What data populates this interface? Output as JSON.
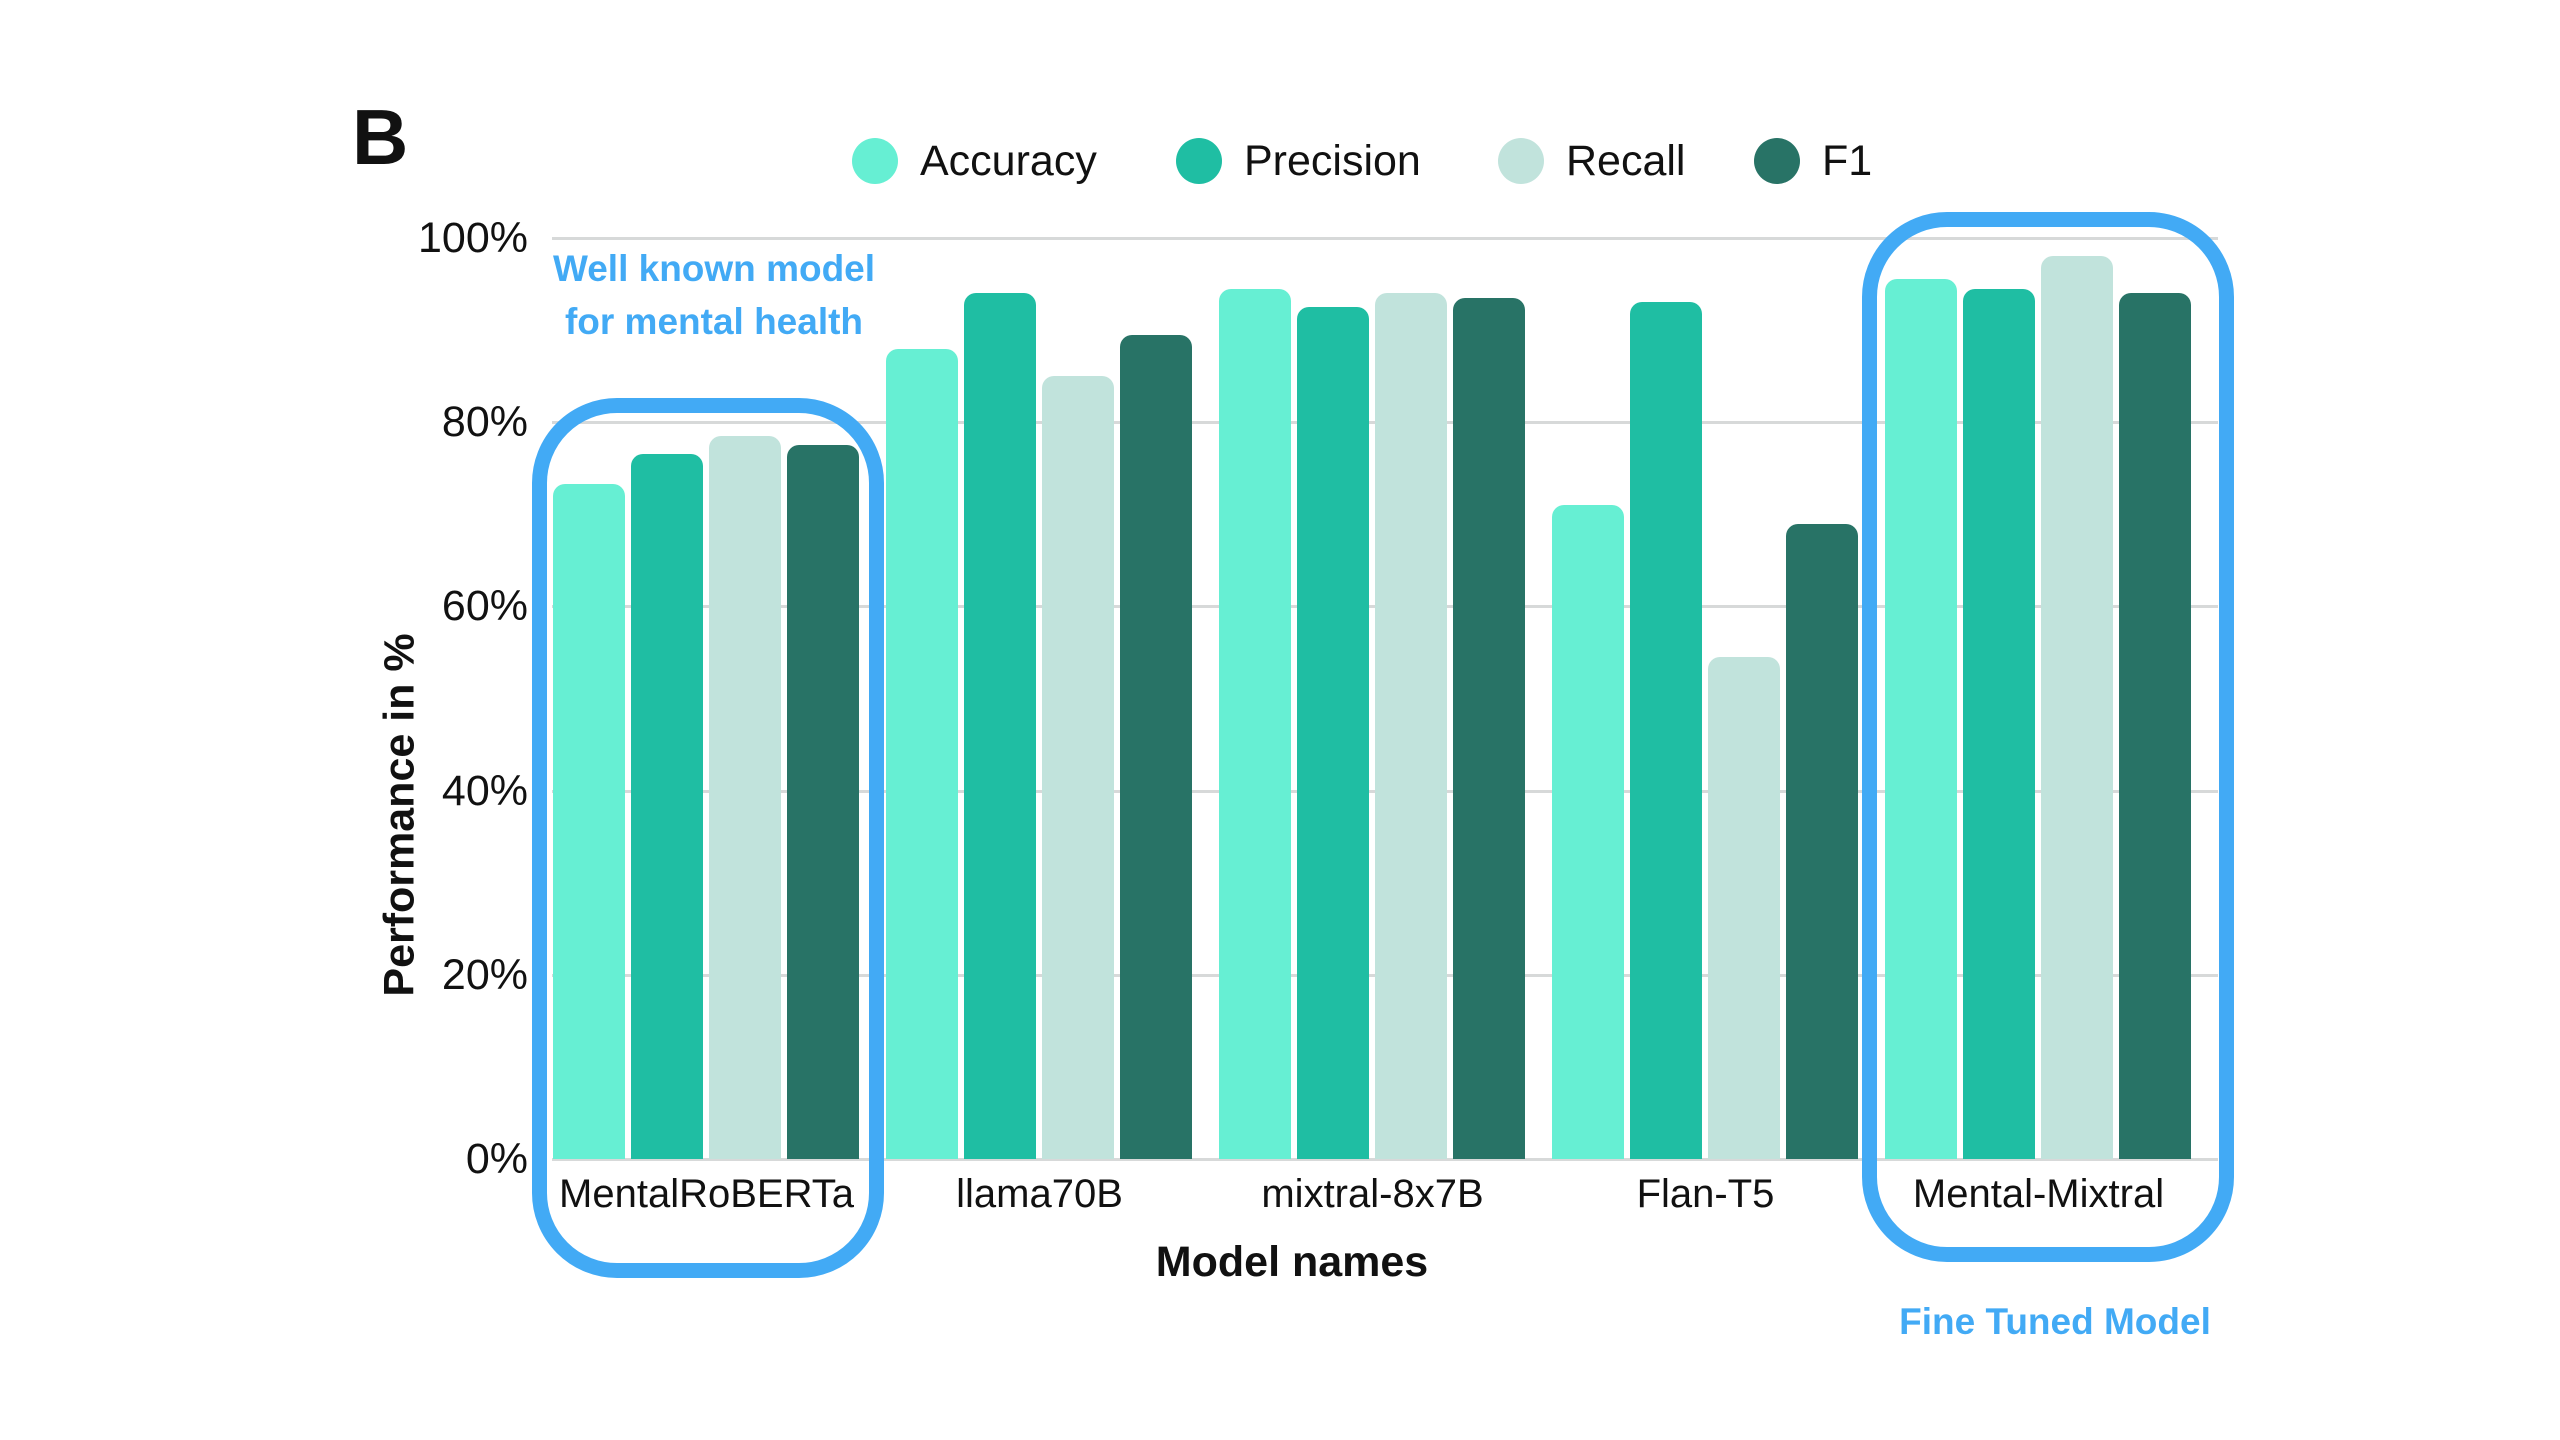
{
  "panel_label": "B",
  "legend": {
    "items": [
      {
        "label": "Accuracy",
        "color": "#66EFD3"
      },
      {
        "label": "Precision",
        "color": "#1FBEA3"
      },
      {
        "label": "Recall",
        "color": "#C1E3DC"
      },
      {
        "label": "F1",
        "color": "#287366"
      }
    ]
  },
  "y_axis": {
    "title": "Performance in %",
    "tick_labels": [
      "0%",
      "20%",
      "40%",
      "60%",
      "80%",
      "100%"
    ]
  },
  "x_axis": {
    "title": "Model names"
  },
  "annotations": {
    "well_known": {
      "line1": "Well known model",
      "line2": "for mental health",
      "color": "#42AAF5",
      "target_category": "MentalRoBERTa"
    },
    "fine_tuned": {
      "text": "Fine Tuned Model",
      "color": "#42AAF5",
      "target_category": "Mental-Mixtral"
    }
  },
  "colors": {
    "highlight_box": "#42AAF5",
    "gridline": "#D7D9D9",
    "text": "#111111",
    "background": "#FFFFFF"
  },
  "chart_data": {
    "type": "bar",
    "title": "",
    "categories": [
      "MentalRoBERTa",
      "llama70B",
      "mixtral-8x7B",
      "Flan-T5",
      "Mental-Mixtral"
    ],
    "series": [
      {
        "name": "Accuracy",
        "color": "#66EFD3",
        "values": [
          73.3,
          88.0,
          94.5,
          71.0,
          95.5
        ]
      },
      {
        "name": "Precision",
        "color": "#1FBEA3",
        "values": [
          76.5,
          94.0,
          92.5,
          93.0,
          94.5
        ]
      },
      {
        "name": "Recall",
        "color": "#C1E3DC",
        "values": [
          78.5,
          85.0,
          94.0,
          54.5,
          98.0
        ]
      },
      {
        "name": "F1",
        "color": "#287366",
        "values": [
          77.5,
          89.5,
          93.5,
          69.0,
          94.0
        ]
      }
    ],
    "xlabel": "Model names",
    "ylabel": "Performance in %",
    "ylim": [
      0,
      100
    ],
    "yticks_percent": [
      0,
      20,
      40,
      60,
      80,
      100
    ],
    "grid": "horizontal",
    "legend_position": "top",
    "highlighted_groups": [
      {
        "category": "MentalRoBERTa",
        "note": "Well known model for mental health"
      },
      {
        "category": "Mental-Mixtral",
        "note": "Fine Tuned Model"
      }
    ]
  }
}
